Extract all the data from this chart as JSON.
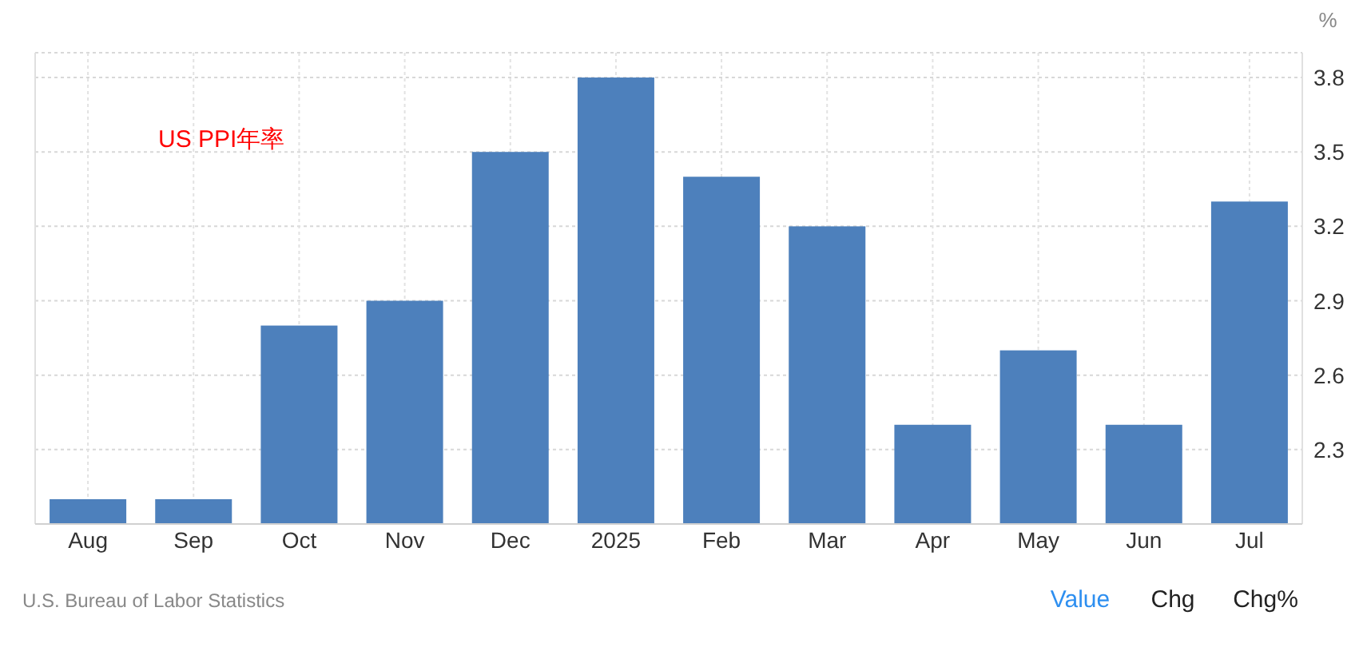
{
  "chart_data": {
    "type": "bar",
    "title": "US PPI年率",
    "ylabel": "%",
    "categories": [
      "Aug",
      "Sep",
      "Oct",
      "Nov",
      "Dec",
      "2025",
      "Feb",
      "Mar",
      "Apr",
      "May",
      "Jun",
      "Jul"
    ],
    "values": [
      2.1,
      2.1,
      2.8,
      2.9,
      3.5,
      3.8,
      3.4,
      3.2,
      2.4,
      2.7,
      2.4,
      3.3
    ],
    "color": "#4d80bc",
    "ylim": [
      2.0,
      3.9
    ],
    "yticks": [
      2.3,
      2.6,
      2.9,
      3.2,
      3.5,
      3.8
    ],
    "grid": true,
    "annotations": [
      "U.S. Bureau of Labor Statistics",
      "Value",
      "Chg",
      "Chg%"
    ]
  }
}
